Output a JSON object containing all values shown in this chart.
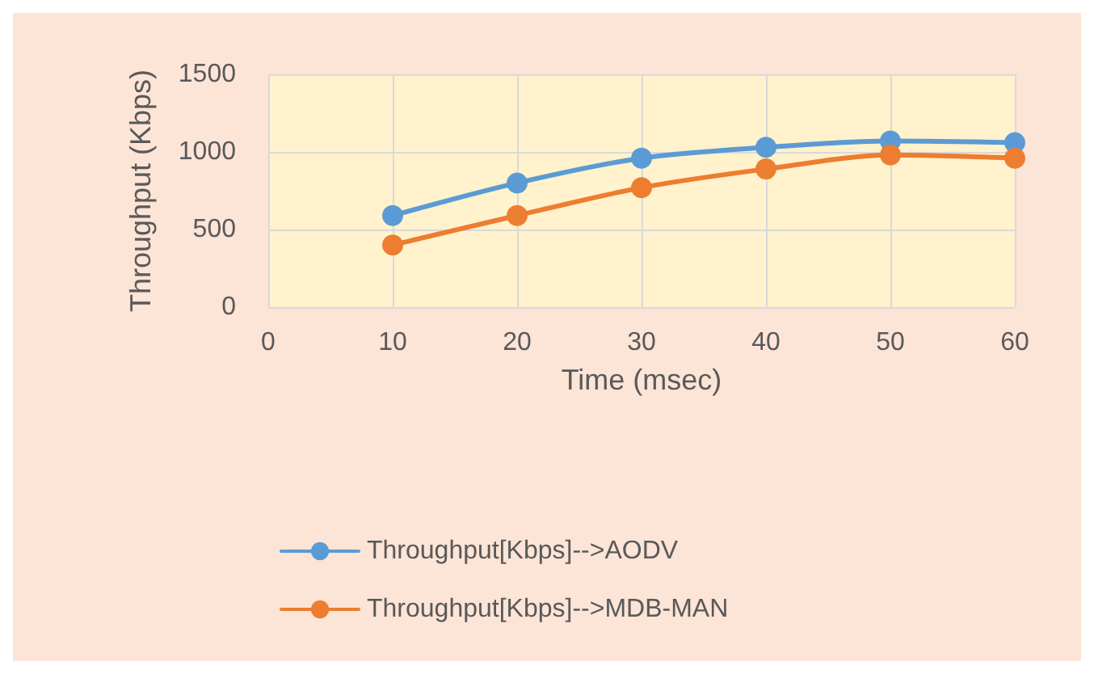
{
  "chart_data": {
    "type": "line",
    "xlabel": "Time (msec)",
    "ylabel": "Throughput (Kbps)",
    "x": [
      10,
      20,
      30,
      40,
      50,
      60
    ],
    "series": [
      {
        "name": "Throughput[Kbps]-->AODV",
        "color": "#5b9bd5",
        "values": [
          590,
          800,
          960,
          1030,
          1070,
          1060
        ]
      },
      {
        "name": "Throughput[Kbps]-->MDB-MAN",
        "color": "#ed7d31",
        "values": [
          400,
          590,
          770,
          890,
          980,
          960
        ]
      }
    ],
    "xlim": [
      0,
      60
    ],
    "xticks": [
      0,
      10,
      20,
      30,
      40,
      50,
      60
    ],
    "ylim": [
      0,
      1500
    ],
    "yticks": [
      0,
      500,
      1000,
      1500
    ],
    "grid": true,
    "legend": "bottom",
    "marker": "circle",
    "line_style": "solid"
  }
}
